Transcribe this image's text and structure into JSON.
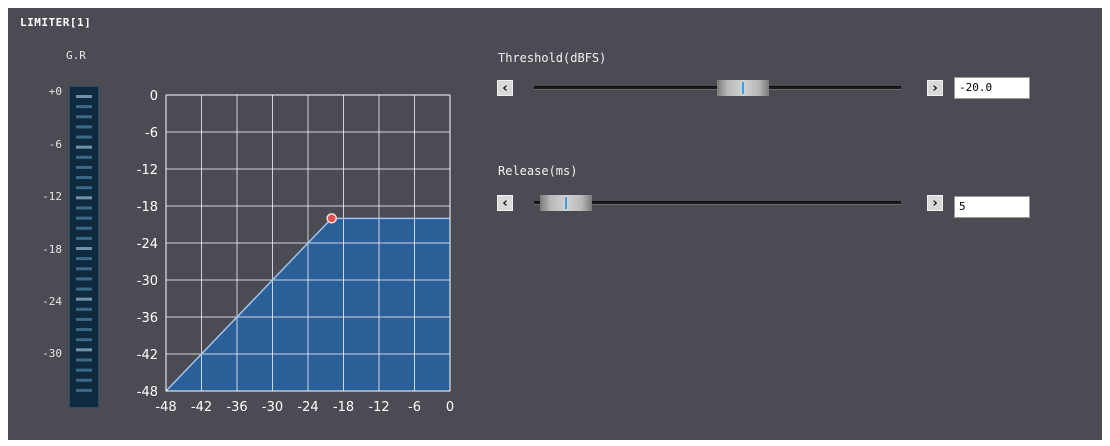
{
  "panel": {
    "title": "LIMITER[1]"
  },
  "gain_reduction": {
    "label": "G.R",
    "ticks": [
      "+0",
      "-6",
      "-12",
      "-18",
      "-24",
      "-30"
    ]
  },
  "chart_data": {
    "type": "line",
    "title": "",
    "xlabel": "",
    "ylabel": "",
    "xlim": [
      -48,
      0
    ],
    "ylim": [
      -48,
      0
    ],
    "x_ticks": [
      "-48",
      "-42",
      "-36",
      "-30",
      "-24",
      "-18",
      "-12",
      "-6",
      "0"
    ],
    "y_ticks": [
      "0",
      "-6",
      "-12",
      "-18",
      "-24",
      "-30",
      "-36",
      "-42",
      "-48"
    ],
    "grid": true,
    "series": [
      {
        "x": [
          -48,
          -20,
          0
        ],
        "y": [
          -48,
          -20,
          -20
        ]
      }
    ],
    "threshold_point": {
      "x": -20,
      "y": -20
    },
    "fill_color": "#2a5f98",
    "line_color": "#9fc3ee",
    "grid_color": "#ffffff",
    "point_color": "#e05050"
  },
  "threshold": {
    "label": "Threshold(dBFS)",
    "value": "-20.0",
    "level": 0.58,
    "left_icon": "chevron-left-icon",
    "right_icon": "chevron-right-icon"
  },
  "release": {
    "label": "Release(ms)",
    "value": "5",
    "level": 0.02,
    "left_icon": "chevron-left-icon",
    "right_icon": "chevron-right-icon"
  },
  "colors": {
    "panel_bg": "#4b4b53",
    "meter_bg": "#0f2a3f",
    "thumb_mark": "#3fa0e8"
  }
}
